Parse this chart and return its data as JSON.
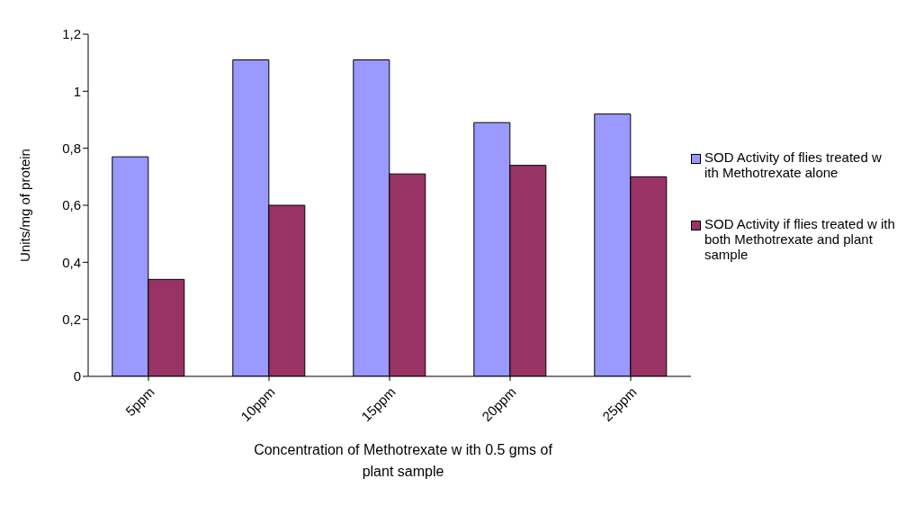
{
  "chart_data": {
    "type": "bar",
    "xlabel": "Concentration of Methotrexate w ith 0.5 gms of plant sample",
    "ylabel": "Units/mg of protein",
    "categories": [
      "5ppm",
      "10ppm",
      "15ppm",
      "20ppm",
      "25ppm"
    ],
    "series": [
      {
        "name": "SOD Activity of flies treated w ith Methotrexate alone",
        "color": "#9999ff",
        "values": [
          0.77,
          1.11,
          1.11,
          0.89,
          0.92
        ]
      },
      {
        "name": "SOD Activity if flies treated w ith both Methotrexate and plant sample",
        "color": "#993366",
        "values": [
          0.34,
          0.6,
          0.71,
          0.74,
          0.7
        ]
      }
    ],
    "ylim": [
      0,
      1.2
    ],
    "yticks": [
      0,
      {
        "value": 0.2,
        "label": "0,2"
      },
      {
        "value": 0.4,
        "label": "0,4"
      },
      {
        "value": 0.6,
        "label": "0,6"
      },
      {
        "value": 0.8,
        "label": "0,8"
      },
      1,
      {
        "value": 1.2,
        "label": "1,2"
      }
    ],
    "grid": false,
    "legend": "right"
  }
}
